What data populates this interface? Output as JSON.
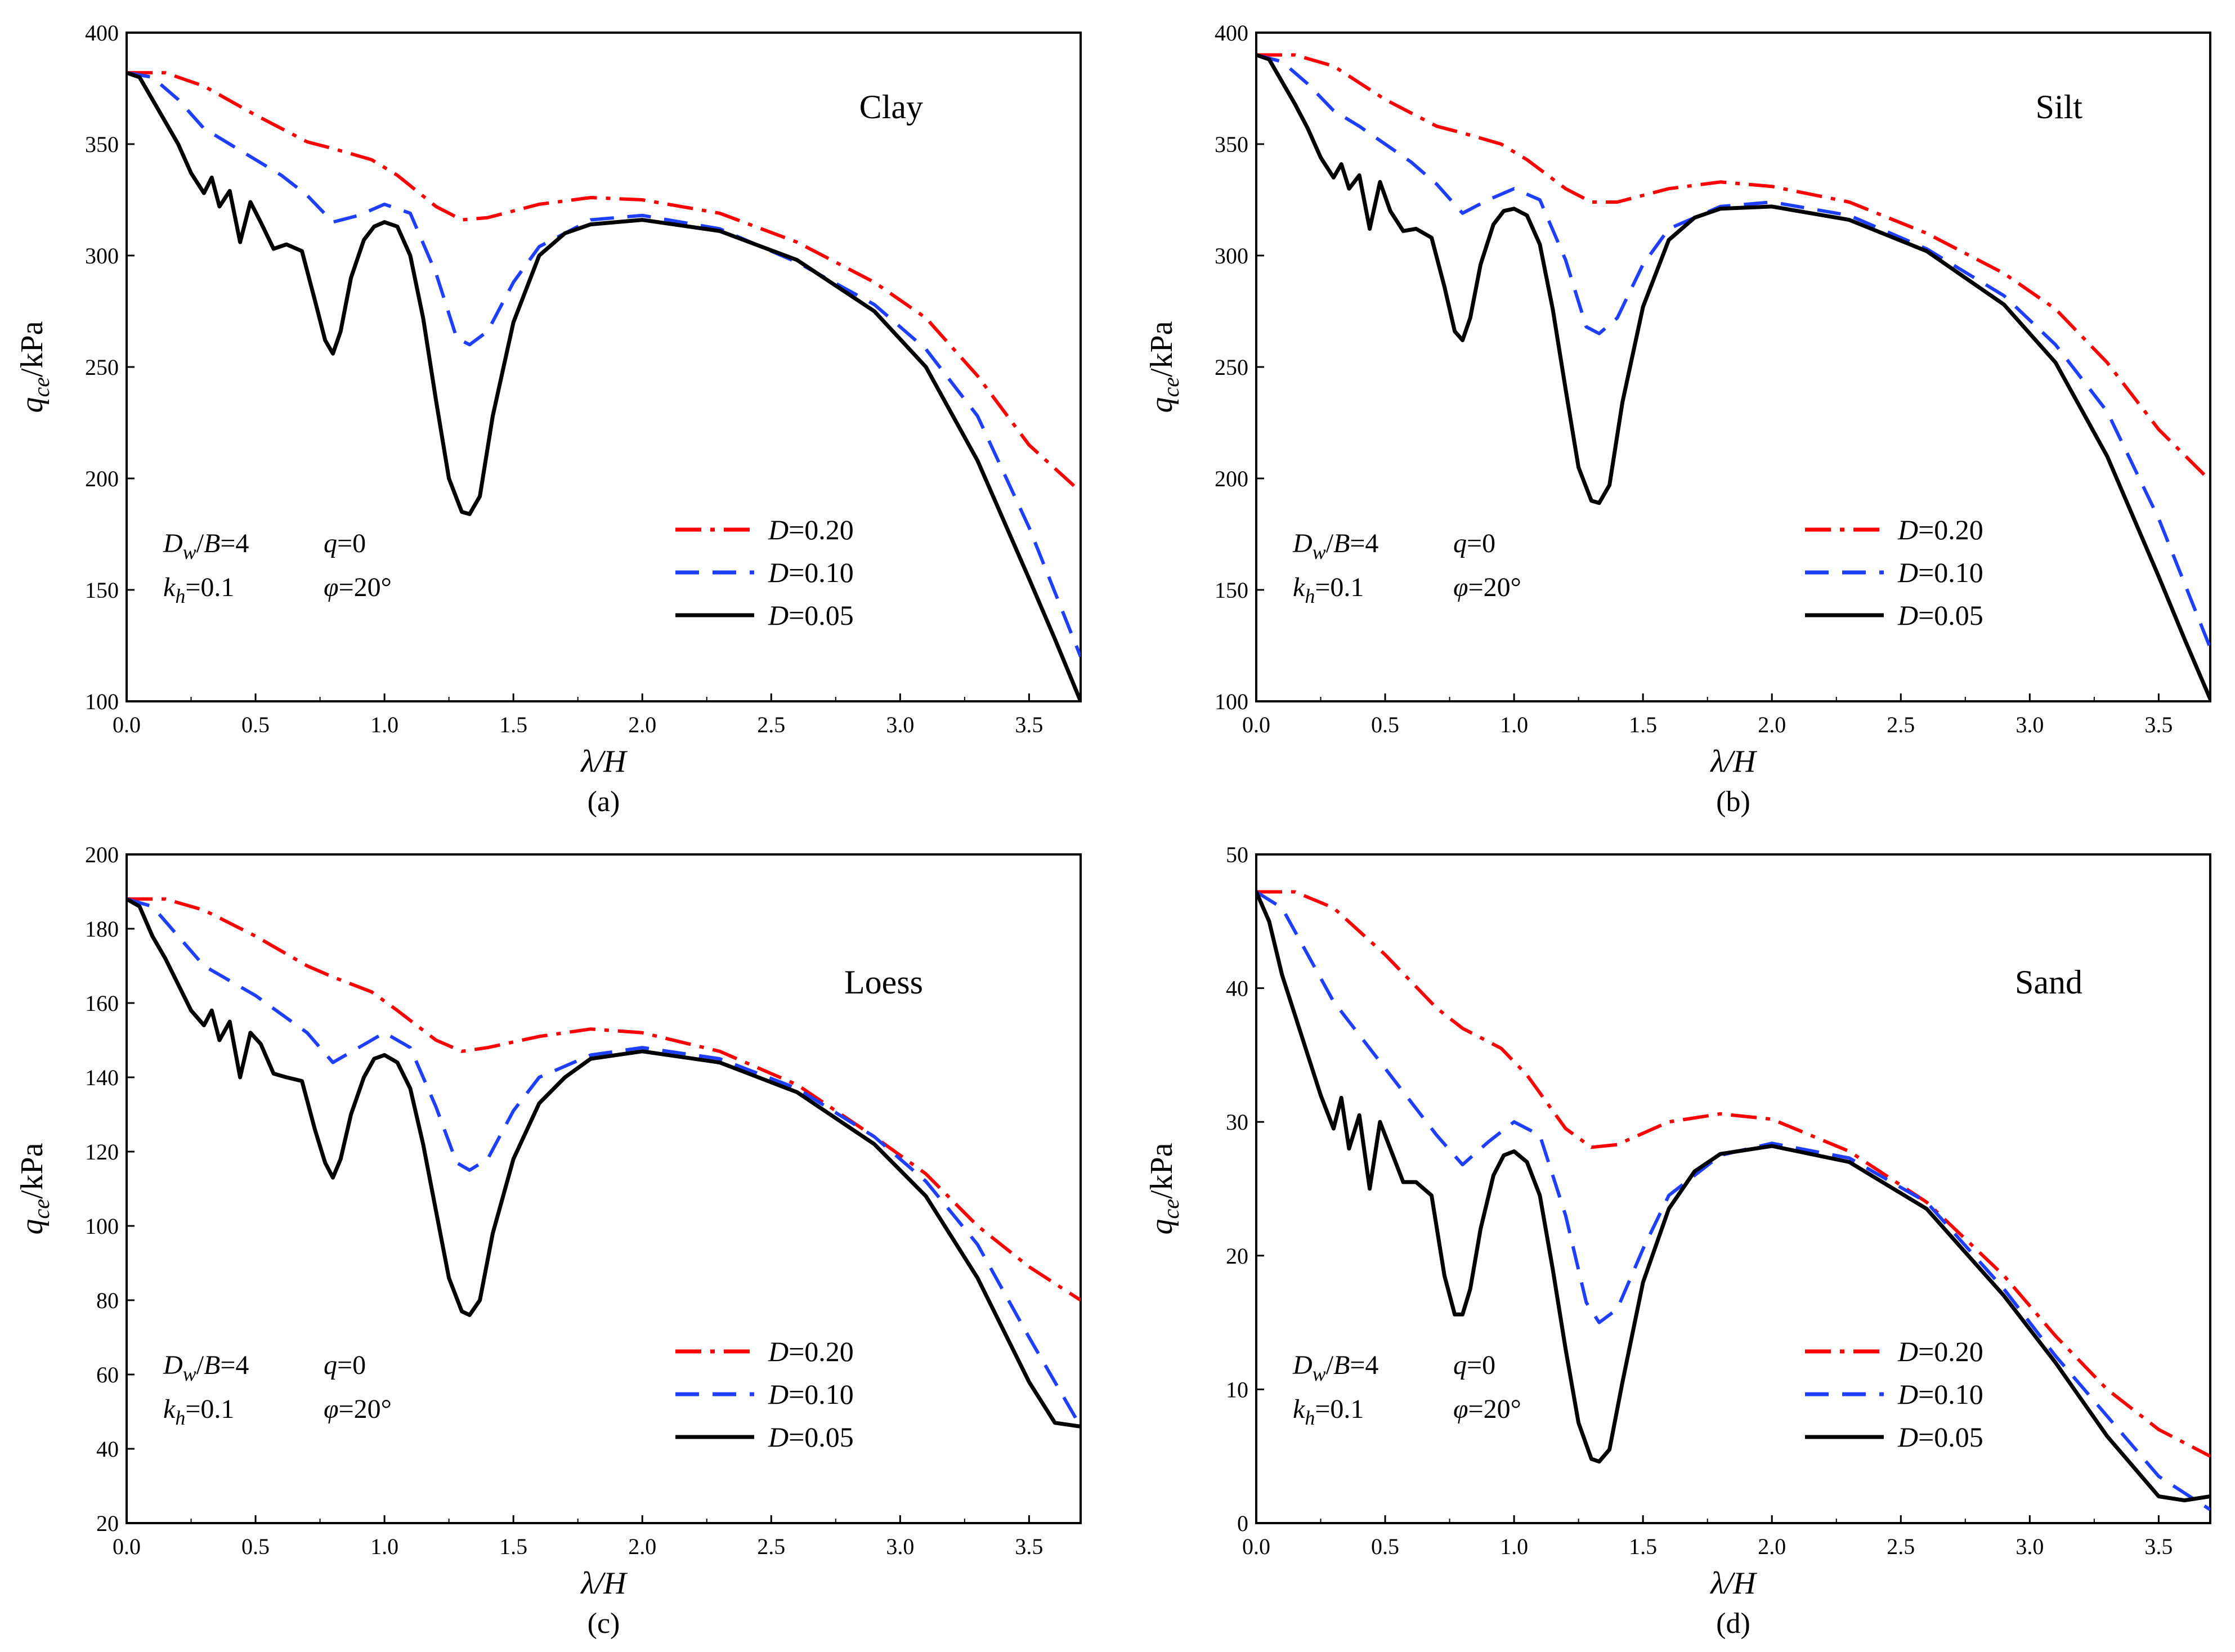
{
  "figure": {
    "captions": [
      "(a)",
      "(b)",
      "(c)",
      "(d)"
    ]
  },
  "chart_data": [
    {
      "type": "line",
      "caption": "(a)",
      "soil_label": "Clay",
      "xlabel": "λ/H",
      "ylabel": "q_ce/kPa",
      "xlim": [
        0,
        3.7
      ],
      "ylim": [
        100,
        400
      ],
      "xticks": [
        "0.0",
        "0.5",
        "1.0",
        "1.5",
        "2.0",
        "2.5",
        "3.0",
        "3.5"
      ],
      "yticks": [
        "100",
        "150",
        "200",
        "250",
        "300",
        "350",
        "400"
      ],
      "annotations": [
        "Dw/B=4",
        "q=0",
        "kh=0.1",
        "φ=20°"
      ],
      "legend": [
        "D=0.20",
        "D=0.10",
        "D=0.05"
      ],
      "series": [
        {
          "name": "D=0.20",
          "color": "#ff0000",
          "dash": "dashdot",
          "x": [
            0,
            0.15,
            0.3,
            0.5,
            0.7,
            0.8,
            0.95,
            1.05,
            1.2,
            1.3,
            1.4,
            1.6,
            1.8,
            2.0,
            2.3,
            2.6,
            2.9,
            3.1,
            3.3,
            3.5,
            3.7
          ],
          "y": [
            382,
            382,
            376,
            363,
            351,
            348,
            343,
            336,
            322,
            316,
            317,
            323,
            326,
            325,
            319,
            306,
            288,
            272,
            246,
            215,
            194
          ]
        },
        {
          "name": "D=0.10",
          "color": "#1f3fff",
          "dash": "dashed",
          "x": [
            0,
            0.1,
            0.2,
            0.3,
            0.4,
            0.5,
            0.6,
            0.7,
            0.8,
            0.9,
            1.0,
            1.1,
            1.2,
            1.28,
            1.33,
            1.4,
            1.5,
            1.6,
            1.8,
            2.0,
            2.3,
            2.6,
            2.9,
            3.1,
            3.3,
            3.5,
            3.7
          ],
          "y": [
            382,
            380,
            370,
            357,
            350,
            343,
            336,
            327,
            315,
            318,
            323,
            319,
            292,
            263,
            260,
            266,
            288,
            304,
            316,
            318,
            312,
            297,
            278,
            258,
            228,
            178,
            120
          ]
        },
        {
          "name": "D=0.05",
          "color": "#000000",
          "dash": "solid",
          "x": [
            0,
            0.05,
            0.1,
            0.15,
            0.2,
            0.25,
            0.3,
            0.33,
            0.36,
            0.4,
            0.44,
            0.48,
            0.52,
            0.57,
            0.62,
            0.68,
            0.73,
            0.77,
            0.8,
            0.83,
            0.87,
            0.92,
            0.96,
            1.0,
            1.05,
            1.1,
            1.15,
            1.2,
            1.25,
            1.3,
            1.33,
            1.37,
            1.42,
            1.5,
            1.6,
            1.7,
            1.8,
            2.0,
            2.3,
            2.6,
            2.9,
            3.1,
            3.3,
            3.5,
            3.6,
            3.7
          ],
          "y": [
            382,
            380,
            370,
            360,
            350,
            337,
            328,
            335,
            322,
            329,
            306,
            324,
            315,
            303,
            305,
            302,
            280,
            262,
            256,
            266,
            290,
            307,
            313,
            315,
            313,
            300,
            272,
            235,
            200,
            185,
            184,
            192,
            228,
            270,
            300,
            310,
            314,
            316,
            311,
            298,
            275,
            250,
            208,
            155,
            128,
            100
          ]
        }
      ]
    },
    {
      "type": "line",
      "caption": "(b)",
      "soil_label": "Silt",
      "xlabel": "λ/H",
      "ylabel": "q_ce/kPa",
      "xlim": [
        0,
        3.7
      ],
      "ylim": [
        100,
        400
      ],
      "xticks": [
        "0.0",
        "0.5",
        "1.0",
        "1.5",
        "2.0",
        "2.5",
        "3.0",
        "3.5"
      ],
      "yticks": [
        "100",
        "150",
        "200",
        "250",
        "300",
        "350",
        "400"
      ],
      "annotations": [
        "Dw/B=4",
        "q=0",
        "kh=0.1",
        "φ=20°"
      ],
      "legend": [
        "D=0.20",
        "D=0.10",
        "D=0.05"
      ],
      "series": [
        {
          "name": "D=0.20",
          "color": "#ff0000",
          "dash": "dashdot",
          "x": [
            0,
            0.15,
            0.3,
            0.5,
            0.7,
            0.8,
            0.95,
            1.05,
            1.2,
            1.3,
            1.4,
            1.6,
            1.8,
            2.0,
            2.3,
            2.6,
            2.9,
            3.1,
            3.3,
            3.5,
            3.7
          ],
          "y": [
            390,
            390,
            385,
            370,
            358,
            355,
            350,
            343,
            330,
            324,
            324,
            330,
            333,
            331,
            324,
            310,
            292,
            276,
            252,
            222,
            199
          ]
        },
        {
          "name": "D=0.10",
          "color": "#1f3fff",
          "dash": "dashed",
          "x": [
            0,
            0.1,
            0.2,
            0.3,
            0.4,
            0.5,
            0.6,
            0.7,
            0.8,
            0.9,
            1.0,
            1.1,
            1.2,
            1.28,
            1.33,
            1.4,
            1.5,
            1.6,
            1.8,
            2.0,
            2.3,
            2.6,
            2.9,
            3.1,
            3.3,
            3.5,
            3.7
          ],
          "y": [
            390,
            387,
            377,
            365,
            358,
            350,
            342,
            332,
            319,
            325,
            330,
            325,
            298,
            268,
            265,
            272,
            296,
            312,
            322,
            324,
            318,
            303,
            282,
            260,
            230,
            182,
            124
          ]
        },
        {
          "name": "D=0.05",
          "color": "#000000",
          "dash": "solid",
          "x": [
            0,
            0.05,
            0.1,
            0.15,
            0.2,
            0.25,
            0.3,
            0.33,
            0.36,
            0.4,
            0.44,
            0.48,
            0.52,
            0.57,
            0.62,
            0.68,
            0.73,
            0.77,
            0.8,
            0.83,
            0.87,
            0.92,
            0.96,
            1.0,
            1.05,
            1.1,
            1.15,
            1.2,
            1.25,
            1.3,
            1.33,
            1.37,
            1.42,
            1.5,
            1.6,
            1.7,
            1.8,
            2.0,
            2.3,
            2.6,
            2.9,
            3.1,
            3.3,
            3.5,
            3.6,
            3.7
          ],
          "y": [
            390,
            388,
            378,
            368,
            357,
            344,
            335,
            341,
            330,
            336,
            312,
            333,
            320,
            311,
            312,
            308,
            286,
            266,
            262,
            272,
            296,
            314,
            320,
            321,
            318,
            305,
            276,
            240,
            205,
            190,
            189,
            197,
            234,
            277,
            307,
            317,
            321,
            322,
            316,
            302,
            278,
            252,
            210,
            156,
            128,
            101
          ]
        }
      ]
    },
    {
      "type": "line",
      "caption": "(c)",
      "soil_label": "Loess",
      "xlabel": "λ/H",
      "ylabel": "q_ce/kPa",
      "xlim": [
        0,
        3.7
      ],
      "ylim": [
        20,
        200
      ],
      "xticks": [
        "0.0",
        "0.5",
        "1.0",
        "1.5",
        "2.0",
        "2.5",
        "3.0",
        "3.5"
      ],
      "yticks": [
        "20",
        "40",
        "60",
        "80",
        "100",
        "120",
        "140",
        "160",
        "180",
        "200"
      ],
      "annotations": [
        "Dw/B=4",
        "q=0",
        "kh=0.1",
        "φ=20°"
      ],
      "legend": [
        "D=0.20",
        "D=0.10",
        "D=0.05"
      ],
      "series": [
        {
          "name": "D=0.20",
          "color": "#ff0000",
          "dash": "dashdot",
          "x": [
            0,
            0.15,
            0.3,
            0.5,
            0.7,
            0.8,
            0.95,
            1.05,
            1.2,
            1.3,
            1.4,
            1.6,
            1.8,
            2.0,
            2.3,
            2.6,
            2.9,
            3.1,
            3.3,
            3.5,
            3.7
          ],
          "y": [
            188,
            188,
            185,
            178,
            170,
            167,
            163,
            158,
            150,
            147,
            148,
            151,
            153,
            152,
            147,
            138,
            124,
            114,
            100,
            89,
            80
          ]
        },
        {
          "name": "D=0.10",
          "color": "#1f3fff",
          "dash": "dashed",
          "x": [
            0,
            0.1,
            0.2,
            0.3,
            0.4,
            0.5,
            0.6,
            0.7,
            0.8,
            0.9,
            1.0,
            1.1,
            1.2,
            1.28,
            1.33,
            1.4,
            1.5,
            1.6,
            1.8,
            2.0,
            2.3,
            2.6,
            2.9,
            3.1,
            3.3,
            3.5,
            3.7
          ],
          "y": [
            188,
            186,
            178,
            170,
            166,
            162,
            157,
            152,
            144,
            148,
            152,
            148,
            132,
            117,
            115,
            118,
            131,
            140,
            146,
            148,
            145,
            137,
            124,
            112,
            95,
            70,
            46
          ]
        },
        {
          "name": "D=0.05",
          "color": "#000000",
          "dash": "solid",
          "x": [
            0,
            0.05,
            0.1,
            0.15,
            0.2,
            0.25,
            0.3,
            0.33,
            0.36,
            0.4,
            0.44,
            0.48,
            0.52,
            0.57,
            0.62,
            0.68,
            0.73,
            0.77,
            0.8,
            0.83,
            0.87,
            0.92,
            0.96,
            1.0,
            1.05,
            1.1,
            1.15,
            1.2,
            1.25,
            1.3,
            1.33,
            1.37,
            1.42,
            1.5,
            1.6,
            1.7,
            1.8,
            2.0,
            2.3,
            2.6,
            2.9,
            3.1,
            3.3,
            3.5,
            3.6,
            3.7
          ],
          "y": [
            188,
            186,
            178,
            172,
            165,
            158,
            154,
            158,
            150,
            155,
            140,
            152,
            149,
            141,
            140,
            139,
            126,
            117,
            113,
            118,
            130,
            140,
            145,
            146,
            144,
            137,
            122,
            104,
            86,
            77,
            76,
            80,
            98,
            118,
            133,
            140,
            145,
            147,
            144,
            136,
            122,
            108,
            86,
            58,
            47,
            46
          ]
        }
      ]
    },
    {
      "type": "line",
      "caption": "(d)",
      "soil_label": "Sand",
      "xlabel": "λ/H",
      "ylabel": "q_ce/kPa",
      "xlim": [
        0,
        3.7
      ],
      "ylim": [
        0,
        50
      ],
      "xticks": [
        "0.0",
        "0.5",
        "1.0",
        "1.5",
        "2.0",
        "2.5",
        "3.0",
        "3.5"
      ],
      "yticks": [
        "0",
        "10",
        "20",
        "30",
        "40",
        "50"
      ],
      "annotations": [
        "Dw/B=4",
        "q=0",
        "kh=0.1",
        "φ=20°"
      ],
      "legend": [
        "D=0.20",
        "D=0.10",
        "D=0.05"
      ],
      "series": [
        {
          "name": "D=0.20",
          "color": "#ff0000",
          "dash": "dashdot",
          "x": [
            0,
            0.15,
            0.3,
            0.5,
            0.7,
            0.8,
            0.95,
            1.05,
            1.2,
            1.3,
            1.4,
            1.6,
            1.8,
            2.0,
            2.3,
            2.6,
            2.9,
            3.1,
            3.3,
            3.5,
            3.7
          ],
          "y": [
            47.2,
            47.2,
            46,
            42.5,
            38.5,
            37,
            35.5,
            33.5,
            29.5,
            28.1,
            28.3,
            30,
            30.6,
            30.2,
            27.8,
            24,
            18.5,
            14,
            10,
            7,
            5
          ]
        },
        {
          "name": "D=0.10",
          "color": "#1f3fff",
          "dash": "dashed",
          "x": [
            0,
            0.1,
            0.2,
            0.3,
            0.4,
            0.5,
            0.6,
            0.7,
            0.8,
            0.9,
            1.0,
            1.1,
            1.2,
            1.28,
            1.33,
            1.4,
            1.5,
            1.6,
            1.8,
            2.0,
            2.3,
            2.6,
            2.9,
            3.1,
            3.3,
            3.5,
            3.7
          ],
          "y": [
            47.2,
            46,
            42.5,
            39,
            36.5,
            34,
            31.5,
            29,
            26.8,
            28.5,
            30,
            29,
            23,
            16.5,
            15,
            16,
            20.5,
            24.5,
            27.5,
            28.4,
            27.3,
            24,
            17.5,
            12.5,
            8,
            3.5,
            1
          ]
        },
        {
          "name": "D=0.05",
          "color": "#000000",
          "dash": "solid",
          "x": [
            0,
            0.05,
            0.1,
            0.15,
            0.2,
            0.25,
            0.3,
            0.33,
            0.36,
            0.4,
            0.44,
            0.48,
            0.52,
            0.57,
            0.62,
            0.68,
            0.73,
            0.77,
            0.8,
            0.83,
            0.87,
            0.92,
            0.96,
            1.0,
            1.05,
            1.1,
            1.15,
            1.2,
            1.25,
            1.3,
            1.33,
            1.37,
            1.42,
            1.5,
            1.6,
            1.7,
            1.8,
            2.0,
            2.3,
            2.6,
            2.9,
            3.1,
            3.3,
            3.5,
            3.6,
            3.7
          ],
          "y": [
            47.2,
            45,
            41,
            38,
            35,
            32,
            29.5,
            31.8,
            28,
            30.5,
            25,
            30,
            28,
            25.5,
            25.5,
            24.5,
            18.5,
            15.6,
            15.6,
            17.5,
            22,
            26,
            27.5,
            27.8,
            27,
            24.5,
            19,
            13,
            7.5,
            4.8,
            4.6,
            5.5,
            10.5,
            18,
            23.5,
            26.3,
            27.6,
            28.2,
            27,
            23.5,
            17,
            12,
            6.5,
            2,
            1.7,
            2
          ]
        }
      ]
    }
  ]
}
